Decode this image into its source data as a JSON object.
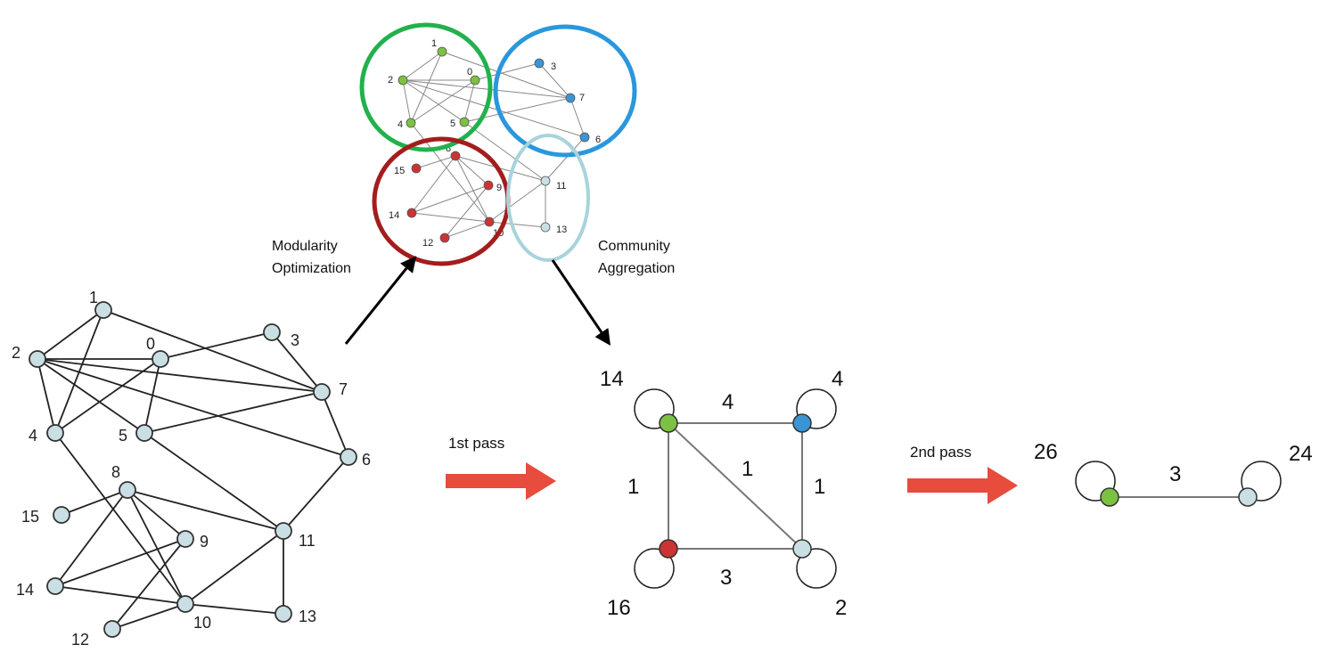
{
  "colors": {
    "node_default": "#c9dfe3",
    "green": "#7cc242",
    "blue": "#3a95d5",
    "red": "#cc3333",
    "light": "#c9dfe3",
    "arrow_red": "#e74c3c",
    "ring_green": "#22b14c",
    "ring_blue": "#2a97dd",
    "ring_red": "#a31d1d",
    "ring_light": "#a8d3dc"
  },
  "captions": {
    "modularity_line1": "Modularity",
    "modularity_line2": "Optimization",
    "community_line1": "Community",
    "community_line2": "Aggregation"
  },
  "passes": {
    "first": "1st pass",
    "second": "2nd pass"
  },
  "original_graph": {
    "nodes": [
      "0",
      "1",
      "2",
      "3",
      "4",
      "5",
      "6",
      "7",
      "8",
      "9",
      "10",
      "11",
      "12",
      "13",
      "14",
      "15"
    ],
    "edges": [
      [
        "1",
        "2"
      ],
      [
        "1",
        "4"
      ],
      [
        "1",
        "7"
      ],
      [
        "2",
        "0"
      ],
      [
        "2",
        "4"
      ],
      [
        "2",
        "5"
      ],
      [
        "2",
        "6"
      ],
      [
        "2",
        "7"
      ],
      [
        "0",
        "3"
      ],
      [
        "0",
        "4"
      ],
      [
        "0",
        "5"
      ],
      [
        "5",
        "7"
      ],
      [
        "5",
        "11"
      ],
      [
        "4",
        "10"
      ],
      [
        "8",
        "15"
      ],
      [
        "8",
        "14"
      ],
      [
        "8",
        "9"
      ],
      [
        "8",
        "10"
      ],
      [
        "8",
        "11"
      ],
      [
        "9",
        "12"
      ],
      [
        "9",
        "14"
      ],
      [
        "14",
        "10"
      ],
      [
        "12",
        "10"
      ],
      [
        "10",
        "11"
      ],
      [
        "10",
        "13"
      ],
      [
        "11",
        "13"
      ],
      [
        "11",
        "6"
      ],
      [
        "6",
        "7"
      ],
      [
        "3",
        "7"
      ]
    ]
  },
  "aggregated_graph": {
    "nodes": [
      {
        "id": "green",
        "weight": "14"
      },
      {
        "id": "blue",
        "weight": "4"
      },
      {
        "id": "red",
        "weight": "16"
      },
      {
        "id": "light",
        "weight": "2"
      }
    ],
    "edges": [
      {
        "from": "green",
        "to": "blue",
        "weight": "4"
      },
      {
        "from": "green",
        "to": "red",
        "weight": "1"
      },
      {
        "from": "green",
        "to": "light",
        "weight": "1"
      },
      {
        "from": "blue",
        "to": "light",
        "weight": "1"
      },
      {
        "from": "red",
        "to": "light",
        "weight": "3"
      }
    ]
  },
  "final_graph": {
    "nodes": [
      {
        "id": "green",
        "weight": "26"
      },
      {
        "id": "light",
        "weight": "24"
      }
    ],
    "edges": [
      {
        "from": "green",
        "to": "light",
        "weight": "3"
      }
    ]
  }
}
